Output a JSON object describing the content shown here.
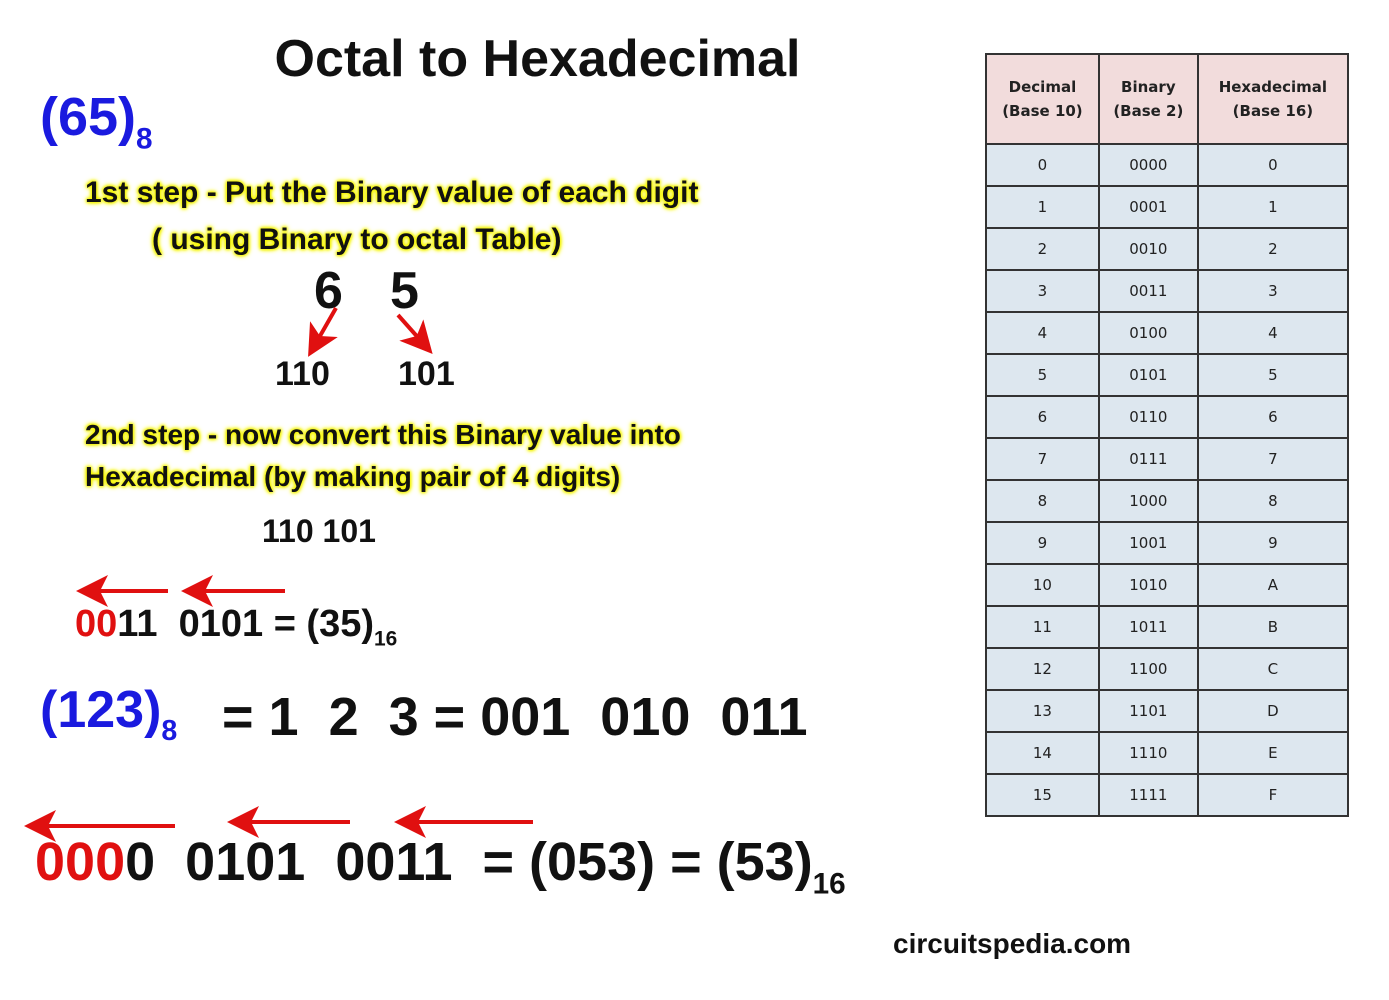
{
  "title": "Octal to Hexadecimal",
  "example1": {
    "number": "(65)",
    "base": "8",
    "step1_line1": "1st step - Put the Binary value of each digit",
    "step1_line2": "( using Binary to octal Table)",
    "digits": [
      "6",
      "5"
    ],
    "binary": [
      "110",
      "101"
    ],
    "step2_line1": "2nd step - now convert this Binary value into",
    "step2_line2": "Hexadecimal (by making pair of 4 digits)",
    "binary_joined": "110 101",
    "pad": "00",
    "group1_rest": "11",
    "group2": "0101",
    "equals": "= (35)",
    "result_base": "16"
  },
  "example2": {
    "number": "(123)",
    "base": "8",
    "expansion": "= 1  2  3 = 001  010  011",
    "pad": "000",
    "group1_rest": "0",
    "group2": "0101",
    "group3": "0011",
    "equals": "= (053) = (53)",
    "result_base": "16"
  },
  "arrow_color": "#e01010",
  "table": {
    "headers": [
      [
        "Decimal",
        "(Base 10)"
      ],
      [
        "Binary",
        "(Base 2)"
      ],
      [
        "Hexadecimal",
        "(Base 16)"
      ]
    ],
    "rows": [
      [
        "0",
        "0000",
        "0"
      ],
      [
        "1",
        "0001",
        "1"
      ],
      [
        "2",
        "0010",
        "2"
      ],
      [
        "3",
        "0011",
        "3"
      ],
      [
        "4",
        "0100",
        "4"
      ],
      [
        "5",
        "0101",
        "5"
      ],
      [
        "6",
        "0110",
        "6"
      ],
      [
        "7",
        "0111",
        "7"
      ],
      [
        "8",
        "1000",
        "8"
      ],
      [
        "9",
        "1001",
        "9"
      ],
      [
        "10",
        "1010",
        "A"
      ],
      [
        "11",
        "1011",
        "B"
      ],
      [
        "12",
        "1100",
        "C"
      ],
      [
        "13",
        "1101",
        "D"
      ],
      [
        "14",
        "1110",
        "E"
      ],
      [
        "15",
        "1111",
        "F"
      ]
    ]
  },
  "footer": "circuitspedia.com"
}
